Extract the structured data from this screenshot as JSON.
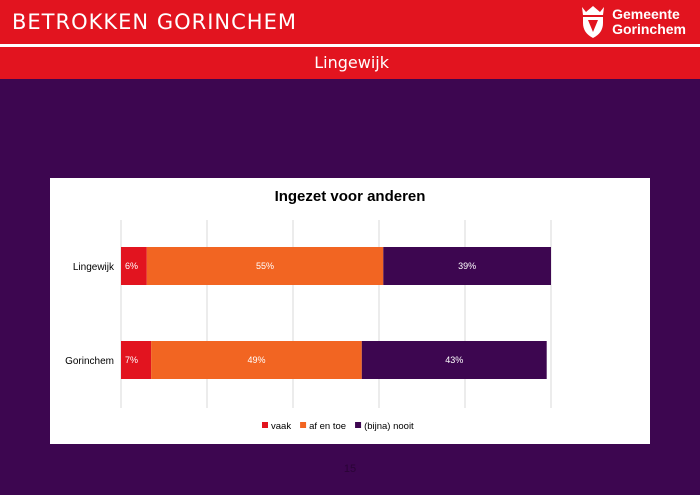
{
  "header": {
    "title": "BETROKKEN GORINCHEM"
  },
  "logo": {
    "line1": "Gemeente",
    "line2": "Gorinchem"
  },
  "subheader": {
    "title": "Lingewijk"
  },
  "page": {
    "number": "15"
  },
  "chart_data": {
    "type": "bar",
    "orientation": "horizontal",
    "stacked": true,
    "percent": true,
    "title": "Ingezet voor anderen",
    "categories": [
      "Lingewijk",
      "Gorinchem"
    ],
    "series": [
      {
        "name": "vaak",
        "values": [
          6,
          7
        ],
        "color": "#e2141f"
      },
      {
        "name": "af en toe",
        "values": [
          55,
          49
        ],
        "color": "#f26522"
      },
      {
        "name": "(bijna) nooit",
        "values": [
          39,
          43
        ],
        "color": "#3d0650"
      }
    ],
    "data_labels": [
      [
        "6%",
        "7%"
      ],
      [
        "55%",
        "49%"
      ],
      [
        "39%",
        "43%"
      ]
    ],
    "xlim": [
      0,
      100
    ],
    "grid": true,
    "legend": "bottom"
  }
}
